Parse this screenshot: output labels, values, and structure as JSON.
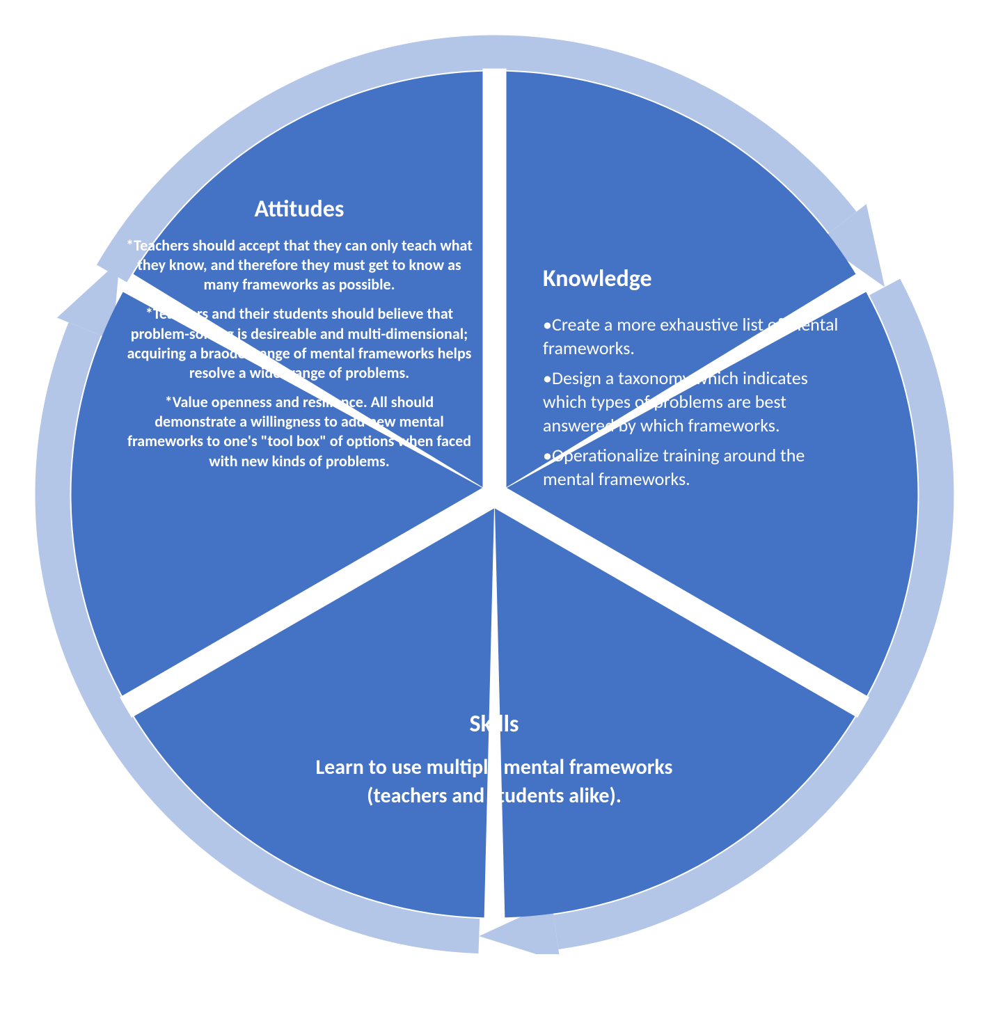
{
  "diagram": {
    "type": "cycle-pie",
    "background_color": "#ffffff",
    "segment_color": "#4472c4",
    "ring_color": "#b4c6e7",
    "arrowhead_color": "#b4c6e7",
    "gap_color": "#ffffff",
    "outer_radius": 660,
    "ring_thickness": 50,
    "segment_gap_deg": 4,
    "text_color": "#ffffff",
    "title_fontsize": 34,
    "body_fontsize_attitudes": 22,
    "body_fontsize_knowledge": 26,
    "body_fontsize_skills": 30,
    "font_family": "Calibri",
    "segments": [
      {
        "key": "attitudes",
        "title": "Attitudes",
        "angle_start": -90,
        "angle_end": 30,
        "bullets": [
          "Teachers should accept that they can only teach what they know, and therefore they must get to know as many frameworks as possible.",
          "Teachers and their students should believe that problem-solving is desireable and multi-dimensional; acquiring a braoder range of mental frameworks helps resolve a wider range of problems.",
          "Value openness and resilience. All should demonstrate a willingness to add new mental frameworks to one's \"tool box\" of options when faced with new kinds of problems."
        ],
        "text_align": "center",
        "bullet_prefix": "*",
        "bullet_bold": true
      },
      {
        "key": "knowledge",
        "title": "Knowledge",
        "angle_start": 30,
        "angle_end": 150,
        "bullets": [
          "Create a more exhaustive list of mental frameworks.",
          "Design a taxonomy which indicates which types of problems are best answered by which frameworks.",
          "Operationalize training  around the mental frameworks."
        ],
        "text_align": "left",
        "bullet_prefix": "•",
        "bullet_bold": false
      },
      {
        "key": "skills",
        "title": "Skills",
        "angle_start": 150,
        "angle_end": 270,
        "body": "Learn to use multiple mental frameworks (teachers and students alike).",
        "text_align": "center",
        "bullet_bold": true
      }
    ]
  }
}
